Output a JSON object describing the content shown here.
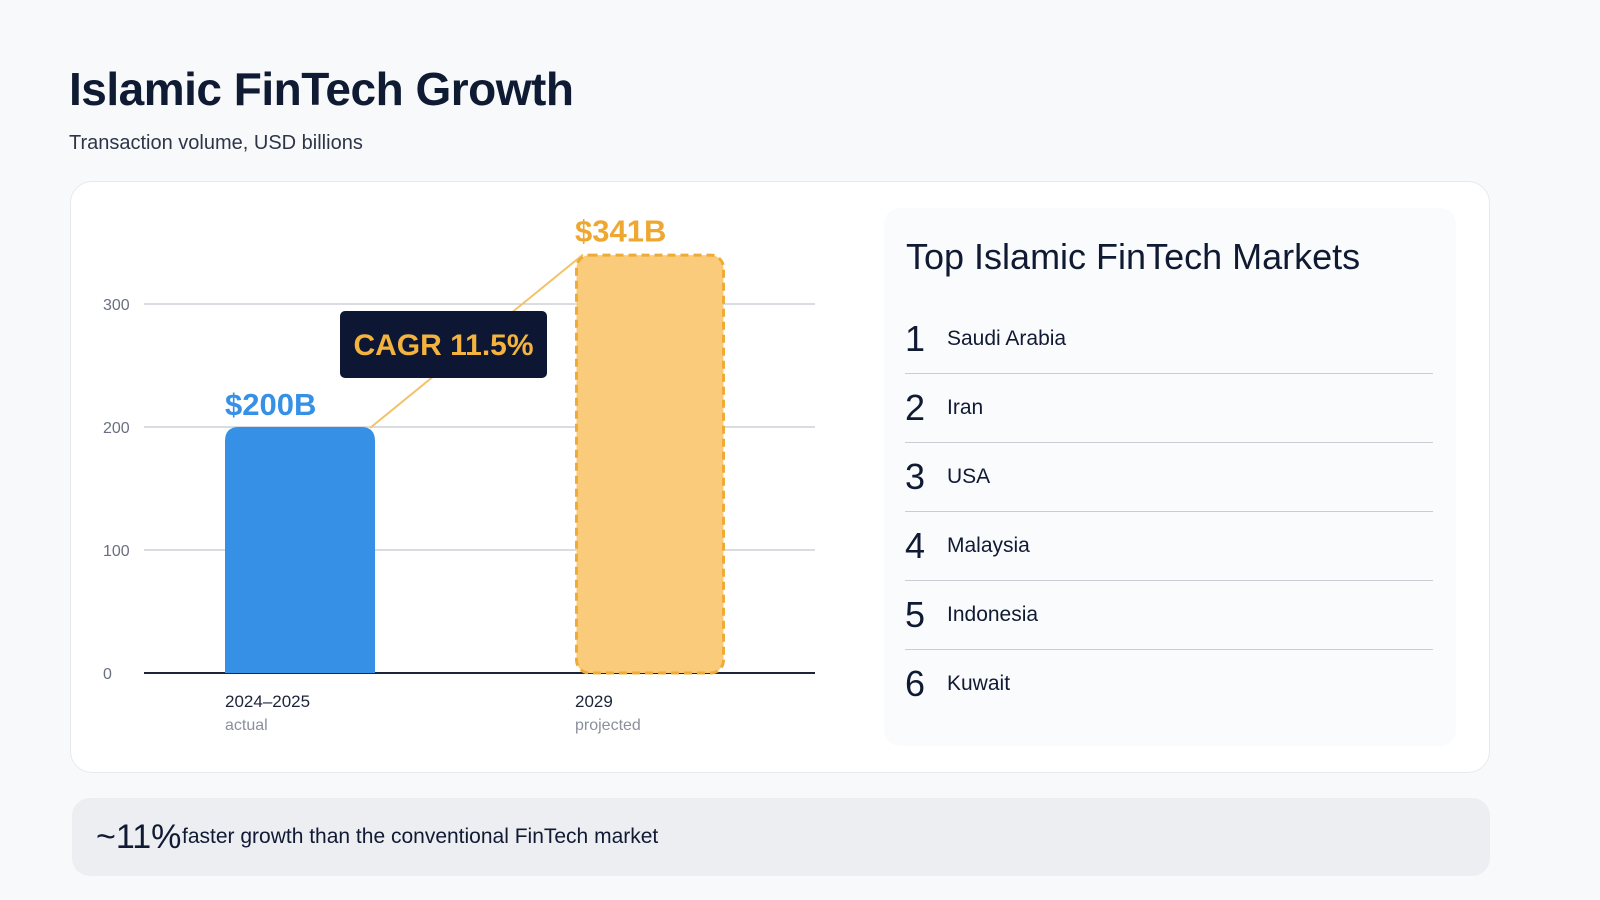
{
  "header": {
    "title": "Islamic FinTech Growth",
    "subtitle": "Transaction volume, USD billions"
  },
  "chart_data": {
    "type": "bar",
    "categories": [
      "2024–2025",
      "2029"
    ],
    "category_notes": [
      "actual",
      "projected"
    ],
    "values": [
      200,
      341
    ],
    "value_labels": [
      "$200B",
      "$341B"
    ],
    "ylim": [
      0,
      300
    ],
    "yticks": [
      0,
      100,
      200,
      300
    ],
    "grid": true,
    "annotation": "CAGR 11.5%",
    "colors": {
      "actual": "#3590e6",
      "projected_fill": "#f9cb7a",
      "projected_border": "#eeac36",
      "projected_label": "#eea832",
      "actual_label": "#3590e6",
      "badge_bg": "#0d1733",
      "badge_text": "#f4b33e",
      "connector": "#f3c26a"
    }
  },
  "markets": {
    "title": "Top Islamic FinTech Markets",
    "items": [
      {
        "rank": "1",
        "name": "Saudi Arabia"
      },
      {
        "rank": "2",
        "name": "Iran"
      },
      {
        "rank": "3",
        "name": "USA"
      },
      {
        "rank": "4",
        "name": "Malaysia"
      },
      {
        "rank": "5",
        "name": "Indonesia"
      },
      {
        "rank": "6",
        "name": "Kuwait"
      }
    ]
  },
  "footer": {
    "stat": "~11%",
    "text": "faster growth than the conventional FinTech market"
  }
}
